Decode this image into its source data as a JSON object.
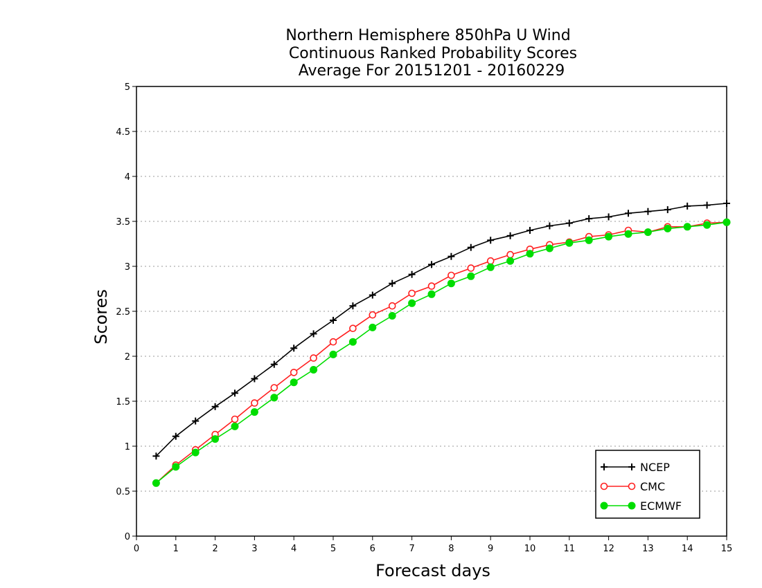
{
  "chart_data": {
    "type": "line",
    "title": [
      "Northern Hemisphere 850hPa U Wind",
      "Continuous Ranked Probability Scores",
      "Average For 20151201 - 20160229"
    ],
    "xlabel": "Forecast days",
    "ylabel": "Scores",
    "xlim": [
      0,
      15
    ],
    "ylim": [
      0,
      5
    ],
    "xticks": [
      "0",
      "1",
      "2",
      "3",
      "4",
      "5",
      "6",
      "7",
      "8",
      "9",
      "10",
      "11",
      "12",
      "13",
      "14",
      "15"
    ],
    "yticks": [
      "0",
      "0.5",
      "1",
      "1.5",
      "2",
      "2.5",
      "3",
      "3.5",
      "4",
      "4.5",
      "5"
    ],
    "grid": true,
    "legend_position": "bottom-right",
    "x": [
      0.5,
      1,
      1.5,
      2,
      2.5,
      3,
      3.5,
      4,
      4.5,
      5,
      5.5,
      6,
      6.5,
      7,
      7.5,
      8,
      8.5,
      9,
      9.5,
      10,
      10.5,
      11,
      11.5,
      12,
      12.5,
      13,
      13.5,
      14,
      14.5,
      15
    ],
    "series": [
      {
        "name": "NCEP",
        "color": "#000000",
        "marker": "plus",
        "values": [
          0.89,
          1.11,
          1.28,
          1.44,
          1.59,
          1.75,
          1.91,
          2.09,
          2.25,
          2.4,
          2.56,
          2.68,
          2.81,
          2.91,
          3.02,
          3.11,
          3.21,
          3.29,
          3.34,
          3.4,
          3.45,
          3.48,
          3.53,
          3.55,
          3.59,
          3.61,
          3.63,
          3.67,
          3.68,
          3.7
        ]
      },
      {
        "name": "CMC",
        "color": "#ff2020",
        "marker": "open-circle",
        "values": [
          0.59,
          0.79,
          0.96,
          1.13,
          1.3,
          1.48,
          1.65,
          1.82,
          1.98,
          2.16,
          2.31,
          2.46,
          2.56,
          2.7,
          2.78,
          2.9,
          2.98,
          3.06,
          3.13,
          3.19,
          3.24,
          3.27,
          3.33,
          3.35,
          3.4,
          3.38,
          3.44,
          3.44,
          3.48,
          3.49
        ]
      },
      {
        "name": "ECMWF",
        "color": "#00dd00",
        "marker": "filled-circle",
        "values": [
          0.59,
          0.77,
          0.93,
          1.08,
          1.22,
          1.38,
          1.54,
          1.71,
          1.85,
          2.02,
          2.16,
          2.32,
          2.45,
          2.59,
          2.69,
          2.81,
          2.89,
          2.99,
          3.06,
          3.14,
          3.2,
          3.26,
          3.29,
          3.33,
          3.36,
          3.38,
          3.42,
          3.44,
          3.46,
          3.49
        ]
      }
    ]
  }
}
